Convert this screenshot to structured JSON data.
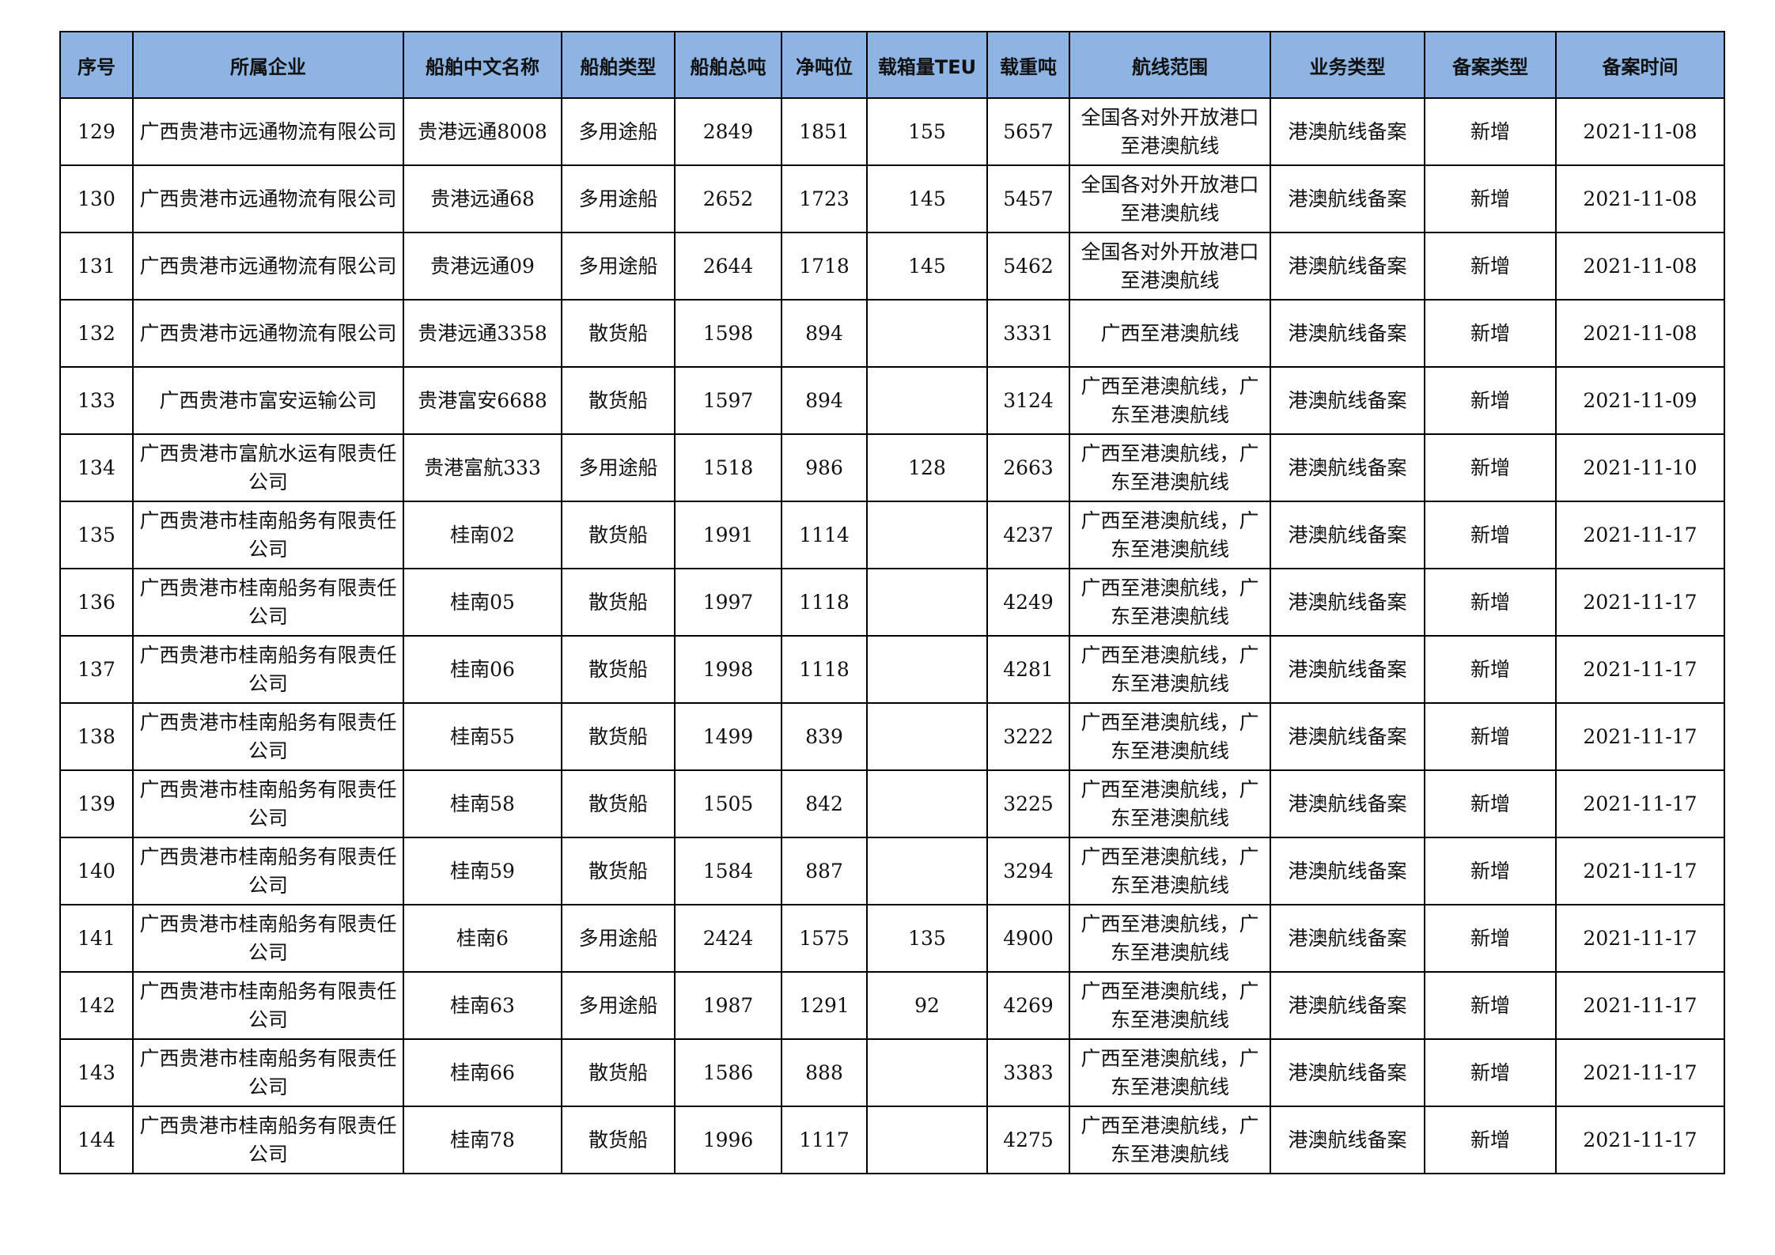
{
  "header_color": "#8DB4E2",
  "columns": [
    "序号",
    "所属企业",
    "船舶中文名称",
    "船舶类型",
    "船舶总吨",
    "净吨位",
    "载箱量TEU",
    "载重吨",
    "航线范围",
    "业务类型",
    "备案类型",
    "备案时间"
  ],
  "rows": [
    [
      "129",
      "广西贵港市远通物流有限公司",
      "贵港远通8008",
      "多用途船",
      "2849",
      "1851",
      "155",
      "5657",
      "全国各对外开放港口至港澳航线",
      "港澳航线备案",
      "新增",
      "2021-11-08"
    ],
    [
      "130",
      "广西贵港市远通物流有限公司",
      "贵港远通68",
      "多用途船",
      "2652",
      "1723",
      "145",
      "5457",
      "全国各对外开放港口至港澳航线",
      "港澳航线备案",
      "新增",
      "2021-11-08"
    ],
    [
      "131",
      "广西贵港市远通物流有限公司",
      "贵港远通09",
      "多用途船",
      "2644",
      "1718",
      "145",
      "5462",
      "全国各对外开放港口至港澳航线",
      "港澳航线备案",
      "新增",
      "2021-11-08"
    ],
    [
      "132",
      "广西贵港市远通物流有限公司",
      "贵港远通3358",
      "散货船",
      "1598",
      "894",
      "",
      "3331",
      "广西至港澳航线",
      "港澳航线备案",
      "新增",
      "2021-11-08"
    ],
    [
      "133",
      "广西贵港市富安运输公司",
      "贵港富安6688",
      "散货船",
      "1597",
      "894",
      "",
      "3124",
      "广西至港澳航线，广东至港澳航线",
      "港澳航线备案",
      "新增",
      "2021-11-09"
    ],
    [
      "134",
      "广西贵港市富航水运有限责任公司",
      "贵港富航333",
      "多用途船",
      "1518",
      "986",
      "128",
      "2663",
      "广西至港澳航线，广东至港澳航线",
      "港澳航线备案",
      "新增",
      "2021-11-10"
    ],
    [
      "135",
      "广西贵港市桂南船务有限责任公司",
      "桂南02",
      "散货船",
      "1991",
      "1114",
      "",
      "4237",
      "广西至港澳航线，广东至港澳航线",
      "港澳航线备案",
      "新增",
      "2021-11-17"
    ],
    [
      "136",
      "广西贵港市桂南船务有限责任公司",
      "桂南05",
      "散货船",
      "1997",
      "1118",
      "",
      "4249",
      "广西至港澳航线，广东至港澳航线",
      "港澳航线备案",
      "新增",
      "2021-11-17"
    ],
    [
      "137",
      "广西贵港市桂南船务有限责任公司",
      "桂南06",
      "散货船",
      "1998",
      "1118",
      "",
      "4281",
      "广西至港澳航线，广东至港澳航线",
      "港澳航线备案",
      "新增",
      "2021-11-17"
    ],
    [
      "138",
      "广西贵港市桂南船务有限责任公司",
      "桂南55",
      "散货船",
      "1499",
      "839",
      "",
      "3222",
      "广西至港澳航线，广东至港澳航线",
      "港澳航线备案",
      "新增",
      "2021-11-17"
    ],
    [
      "139",
      "广西贵港市桂南船务有限责任公司",
      "桂南58",
      "散货船",
      "1505",
      "842",
      "",
      "3225",
      "广西至港澳航线，广东至港澳航线",
      "港澳航线备案",
      "新增",
      "2021-11-17"
    ],
    [
      "140",
      "广西贵港市桂南船务有限责任公司",
      "桂南59",
      "散货船",
      "1584",
      "887",
      "",
      "3294",
      "广西至港澳航线，广东至港澳航线",
      "港澳航线备案",
      "新增",
      "2021-11-17"
    ],
    [
      "141",
      "广西贵港市桂南船务有限责任公司",
      "桂南6",
      "多用途船",
      "2424",
      "1575",
      "135",
      "4900",
      "广西至港澳航线，广东至港澳航线",
      "港澳航线备案",
      "新增",
      "2021-11-17"
    ],
    [
      "142",
      "广西贵港市桂南船务有限责任公司",
      "桂南63",
      "多用途船",
      "1987",
      "1291",
      "92",
      "4269",
      "广西至港澳航线，广东至港澳航线",
      "港澳航线备案",
      "新增",
      "2021-11-17"
    ],
    [
      "143",
      "广西贵港市桂南船务有限责任公司",
      "桂南66",
      "散货船",
      "1586",
      "888",
      "",
      "3383",
      "广西至港澳航线，广东至港澳航线",
      "港澳航线备案",
      "新增",
      "2021-11-17"
    ],
    [
      "144",
      "广西贵港市桂南船务有限责任公司",
      "桂南78",
      "散货船",
      "1996",
      "1117",
      "",
      "4275",
      "广西至港澳航线，广东至港澳航线",
      "港澳航线备案",
      "新增",
      "2021-11-17"
    ]
  ]
}
